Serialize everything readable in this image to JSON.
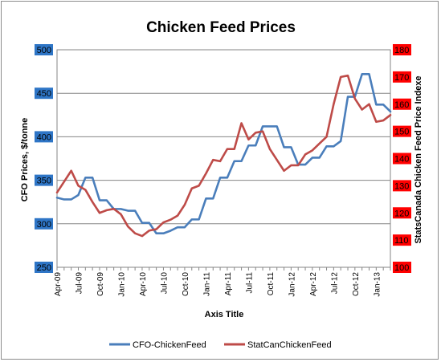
{
  "chart_data": {
    "type": "line",
    "title": "Chicken Feed Prices",
    "xlabel": "Axis Title",
    "ylabel_left": "CFO Prices, $/tonne",
    "ylabel_right": "StatsCanada Chicken Feed Price Indexe",
    "ylim_left": [
      250,
      500
    ],
    "ylim_right": [
      100,
      180
    ],
    "yticks_left": [
      "250",
      "300",
      "350",
      "400",
      "450",
      "500"
    ],
    "yticks_right": [
      "100",
      "110",
      "120",
      "130",
      "140",
      "150",
      "160",
      "170",
      "180"
    ],
    "left_tick_bg_color": "#2e75c6",
    "right_tick_bg_color": "#ff0000",
    "grid": true,
    "legend_position": "bottom",
    "x_tick_labels": [
      "Apr-09",
      "Jul-09",
      "Oct-09",
      "Jan-10",
      "Apr-10",
      "Jul-10",
      "Oct-10",
      "Jan-11",
      "Apr-11",
      "Jul-11",
      "Oct-11",
      "Jan-12",
      "Apr-12",
      "Jul-12",
      "Oct-12",
      "Jan-13"
    ],
    "x": [
      "Apr-09",
      "May-09",
      "Jun-09",
      "Jul-09",
      "Aug-09",
      "Sep-09",
      "Oct-09",
      "Nov-09",
      "Dec-09",
      "Jan-10",
      "Feb-10",
      "Mar-10",
      "Apr-10",
      "May-10",
      "Jun-10",
      "Jul-10",
      "Aug-10",
      "Sep-10",
      "Oct-10",
      "Nov-10",
      "Dec-10",
      "Jan-11",
      "Feb-11",
      "Mar-11",
      "Apr-11",
      "May-11",
      "Jun-11",
      "Jul-11",
      "Aug-11",
      "Sep-11",
      "Oct-11",
      "Nov-11",
      "Dec-11",
      "Jan-12",
      "Feb-12",
      "Mar-12",
      "Apr-12",
      "May-12",
      "Jun-12",
      "Jul-12",
      "Aug-12",
      "Sep-12",
      "Oct-12",
      "Nov-12",
      "Dec-12",
      "Jan-13",
      "Feb-13",
      "Mar-13"
    ],
    "series": [
      {
        "name": "CFO-ChickenFeed",
        "axis": "left",
        "color": "#4a7ebb",
        "values": [
          330,
          328,
          328,
          333,
          353,
          353,
          327,
          327,
          317,
          317,
          315,
          315,
          301,
          301,
          289,
          289,
          292,
          296,
          296,
          305,
          305,
          329,
          329,
          353,
          353,
          372,
          372,
          390,
          390,
          412,
          412,
          412,
          388,
          388,
          368,
          368,
          376,
          376,
          389,
          389,
          395,
          446,
          446,
          472,
          472,
          437,
          437,
          429
        ]
      },
      {
        "name": "StatCanChickenFeed",
        "axis": "right",
        "color": "#be4b48",
        "values": [
          127.5,
          131.5,
          135.5,
          130,
          128.5,
          124,
          120,
          121,
          121.5,
          119.5,
          115,
          112.5,
          111.5,
          113.5,
          114,
          116.5,
          117.5,
          119,
          123,
          129,
          130,
          134.5,
          139.5,
          139,
          143.5,
          143.5,
          153,
          147,
          149.5,
          150,
          143.5,
          139.5,
          135.5,
          137.5,
          137.5,
          141.5,
          143,
          145.5,
          148,
          160,
          170,
          170.5,
          162,
          158,
          160,
          153.5,
          154,
          156
        ]
      }
    ]
  }
}
